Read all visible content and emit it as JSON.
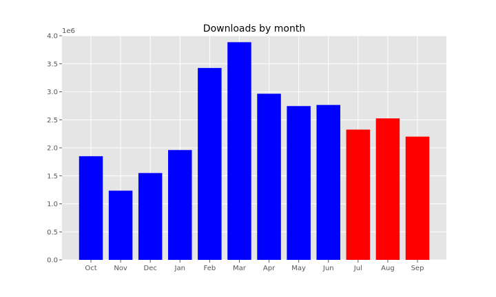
{
  "chart_data": {
    "type": "bar",
    "title": "Downloads by month",
    "xlabel": "",
    "ylabel": "",
    "categories": [
      "Oct",
      "Nov",
      "Dec",
      "Jan",
      "Feb",
      "Mar",
      "Apr",
      "May",
      "Jun",
      "Jul",
      "Aug",
      "Sep"
    ],
    "values": [
      1850000,
      1235000,
      1550000,
      1960000,
      3425000,
      3885000,
      2965000,
      2745000,
      2765000,
      2325000,
      2525000,
      2200000
    ],
    "bar_colors": [
      "#0000ff",
      "#0000ff",
      "#0000ff",
      "#0000ff",
      "#0000ff",
      "#0000ff",
      "#0000ff",
      "#0000ff",
      "#0000ff",
      "#ff0000",
      "#ff0000",
      "#ff0000"
    ],
    "ylim": [
      0,
      4000000
    ],
    "yticks": [
      0,
      500000,
      1000000,
      1500000,
      2000000,
      2500000,
      3000000,
      3500000,
      4000000
    ],
    "ytick_labels": [
      "0.0",
      "0.5",
      "1.0",
      "1.5",
      "2.0",
      "2.5",
      "3.0",
      "3.5",
      "4.0"
    ],
    "y_offset_label": "1e6",
    "grid": true,
    "style": {
      "plot_background": "#e5e5e5",
      "grid_color": "#ffffff",
      "tick_color": "#555555",
      "title_color": "#000000"
    }
  }
}
